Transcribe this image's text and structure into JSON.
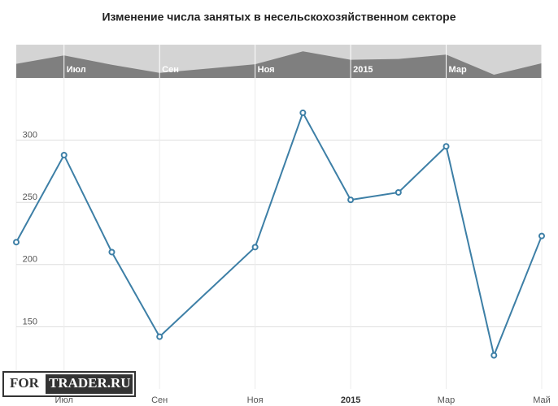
{
  "chart_data": {
    "type": "line",
    "title": "Изменение числа занятых в несельскохозяйственном секторе",
    "x": [
      "2014-06",
      "2014-07",
      "2014-08",
      "2014-09",
      "2014-11",
      "2014-12",
      "2015-01",
      "2015-02",
      "2015-03",
      "2015-04",
      "2015-05"
    ],
    "series": [
      {
        "color": "#3d7fa6",
        "values": [
          218,
          288,
          210,
          142,
          214,
          322,
          252,
          258,
          295,
          127,
          223
        ]
      }
    ],
    "xlim": [
      "2014-06",
      "2015-05"
    ],
    "xticks": [
      {
        "value": "2014-07",
        "label": "Июл"
      },
      {
        "value": "2014-09",
        "label": "Сен"
      },
      {
        "value": "2014-11",
        "label": "Ноя"
      },
      {
        "value": "2015-01",
        "label": "2015"
      },
      {
        "value": "2015-03",
        "label": "Мар"
      },
      {
        "value": "2015-05",
        "label": "Май"
      }
    ],
    "ylim": [
      100,
      350
    ],
    "yticks": [
      150,
      200,
      250,
      300
    ],
    "grid": true,
    "watermark": [
      "FOR",
      "TRADER.RU"
    ]
  }
}
